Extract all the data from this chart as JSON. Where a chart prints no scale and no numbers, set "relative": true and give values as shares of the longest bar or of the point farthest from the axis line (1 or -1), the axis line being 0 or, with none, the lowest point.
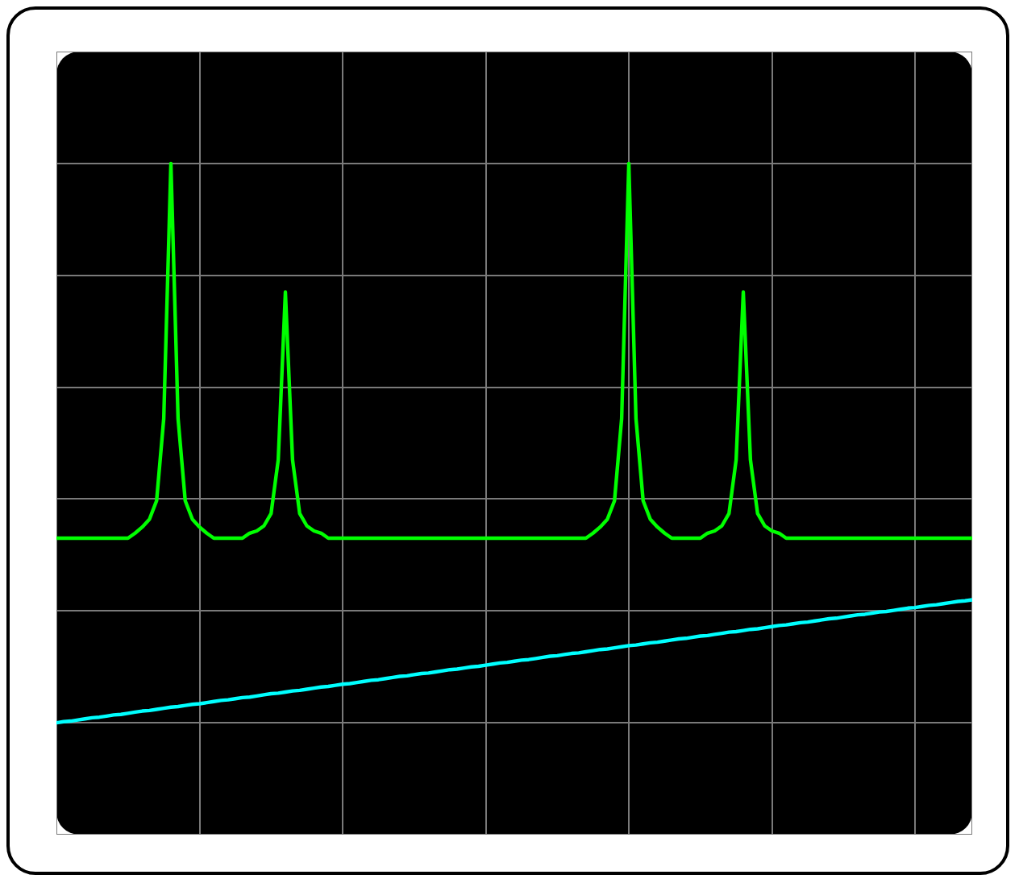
{
  "chart_data": {
    "type": "line",
    "relative": true,
    "grid": true,
    "legend": false,
    "tick_labels": false,
    "marker": "none",
    "line_style": "solid",
    "categories": [
      null,
      null,
      null,
      null,
      null,
      null,
      null,
      null,
      null,
      null,
      null,
      null,
      null,
      null,
      null,
      null,
      null,
      null,
      null,
      null,
      null,
      null,
      null,
      null,
      null,
      null,
      null,
      null,
      null,
      null,
      null,
      null,
      null,
      null,
      null,
      null,
      null,
      null,
      null,
      null,
      null,
      null,
      null,
      null,
      null,
      null,
      null,
      null,
      null,
      null,
      null,
      null,
      null,
      null,
      null,
      null,
      null,
      null,
      null,
      null,
      null,
      null,
      null,
      null,
      null,
      null,
      null,
      null,
      null,
      null,
      null,
      null,
      null,
      null,
      null,
      null,
      null,
      null,
      null,
      null,
      null,
      null,
      null,
      null,
      null,
      null,
      null,
      null,
      null,
      null,
      null,
      null,
      null,
      null,
      null,
      null,
      null,
      null,
      null,
      null,
      null,
      null,
      null,
      null,
      null,
      null,
      null,
      null,
      null,
      null,
      null,
      null,
      null,
      null,
      null,
      null,
      null,
      null,
      null,
      null,
      null,
      null,
      null,
      null,
      null,
      null,
      null,
      null,
      null
    ],
    "series": [
      {
        "color": "#00ff00",
        "values": [
          0.33,
          0.33,
          0.33,
          0.33,
          0.33,
          0.33,
          0.33,
          0.33,
          0.33,
          0.33,
          0.33,
          0.339,
          0.35,
          0.364,
          0.397,
          0.544,
          1,
          0.544,
          0.397,
          0.364,
          0.35,
          0.339,
          0.33,
          0.33,
          0.33,
          0.33,
          0.33,
          0.339,
          0.343,
          0.352,
          0.374,
          0.47,
          0.77,
          0.47,
          0.374,
          0.352,
          0.343,
          0.339,
          0.33,
          0.33,
          0.33,
          0.33,
          0.33,
          0.33,
          0.33,
          0.33,
          0.33,
          0.33,
          0.33,
          0.33,
          0.33,
          0.33,
          0.33,
          0.33,
          0.33,
          0.33,
          0.33,
          0.33,
          0.33,
          0.33,
          0.33,
          0.33,
          0.33,
          0.33,
          0.33,
          0.33,
          0.33,
          0.33,
          0.33,
          0.33,
          0.33,
          0.33,
          0.33,
          0.33,
          0.33,
          0.339,
          0.35,
          0.364,
          0.397,
          0.544,
          1,
          0.544,
          0.397,
          0.364,
          0.35,
          0.339,
          0.33,
          0.33,
          0.33,
          0.33,
          0.33,
          0.339,
          0.343,
          0.352,
          0.374,
          0.47,
          0.77,
          0.47,
          0.374,
          0.352,
          0.343,
          0.339,
          0.33,
          0.33,
          0.33,
          0.33,
          0.33,
          0.33,
          0.33,
          0.33,
          0.33,
          0.33,
          0.33,
          0.33,
          0.33,
          0.33,
          0.33,
          0.33,
          0.33,
          0.33,
          0.33,
          0.33,
          0.33,
          0.33,
          0.33,
          0.33,
          0.33,
          0.33,
          0.33
        ]
      },
      {
        "color": "#00ffff",
        "values": [
          0,
          0.002,
          0.003,
          0.005,
          0.007,
          0.009,
          0.01,
          0.012,
          0.014,
          0.015,
          0.017,
          0.019,
          0.021,
          0.022,
          0.024,
          0.026,
          0.028,
          0.029,
          0.031,
          0.033,
          0.034,
          0.036,
          0.038,
          0.04,
          0.041,
          0.043,
          0.045,
          0.046,
          0.048,
          0.05,
          0.052,
          0.053,
          0.055,
          0.057,
          0.058,
          0.06,
          0.062,
          0.064,
          0.065,
          0.067,
          0.069,
          0.07,
          0.072,
          0.074,
          0.076,
          0.077,
          0.079,
          0.081,
          0.083,
          0.084,
          0.086,
          0.088,
          0.089,
          0.091,
          0.093,
          0.095,
          0.096,
          0.098,
          0.1,
          0.101,
          0.103,
          0.105,
          0.107,
          0.108,
          0.11,
          0.112,
          0.113,
          0.115,
          0.117,
          0.119,
          0.12,
          0.122,
          0.124,
          0.125,
          0.127,
          0.129,
          0.131,
          0.132,
          0.134,
          0.136,
          0.138,
          0.139,
          0.141,
          0.143,
          0.144,
          0.146,
          0.148,
          0.15,
          0.151,
          0.153,
          0.155,
          0.156,
          0.158,
          0.16,
          0.162,
          0.163,
          0.165,
          0.167,
          0.168,
          0.17,
          0.172,
          0.174,
          0.175,
          0.177,
          0.179,
          0.18,
          0.182,
          0.184,
          0.186,
          0.187,
          0.189,
          0.191,
          0.193,
          0.194,
          0.196,
          0.198,
          0.199,
          0.201,
          0.203,
          0.205,
          0.206,
          0.208,
          0.21,
          0.211,
          0.213,
          0.215,
          0.217,
          0.218,
          0.22
        ]
      }
    ]
  }
}
